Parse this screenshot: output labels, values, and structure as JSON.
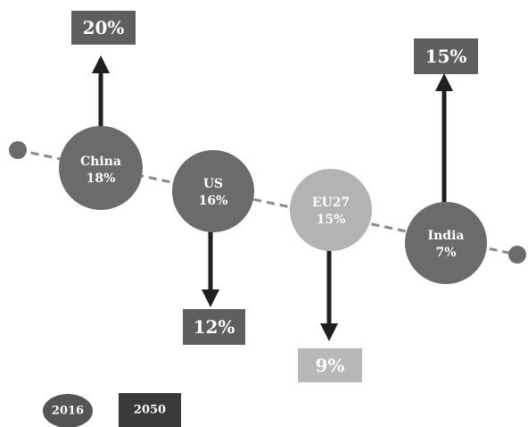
{
  "colors": {
    "line": "#8a8a8a",
    "dark_circle": "#6b6b6b",
    "light_circle": "#b3b3b3",
    "dark_box": "#5f5f5f",
    "light_box": "#b8b8b8",
    "arrow": "#1f1f1f",
    "legend_circle": "#555555",
    "legend_box": "#3a3a3a"
  },
  "nodes": [
    {
      "name": "China",
      "share_2016": "18%",
      "share_2050": "20%",
      "direction": "up"
    },
    {
      "name": "US",
      "share_2016": "16%",
      "share_2050": "12%",
      "direction": "down"
    },
    {
      "name": "EU27",
      "share_2016": "15%",
      "share_2050": "9%",
      "direction": "down"
    },
    {
      "name": "India",
      "share_2016": "7%",
      "share_2050": "15%",
      "direction": "up"
    }
  ],
  "legend": {
    "circle_label": "2016",
    "box_label": "2050"
  }
}
